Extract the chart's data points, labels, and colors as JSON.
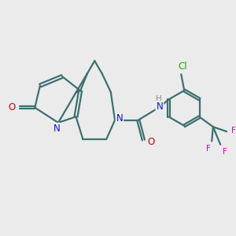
{
  "bg_color": "#ebebeb",
  "bond_color": "#3d7070",
  "bond_width": 1.6,
  "dbo": 0.06,
  "atom_colors": {
    "N": "#1010dd",
    "O": "#cc0000",
    "Cl": "#22aa00",
    "F": "#cc00cc",
    "H": "#888888"
  },
  "font_size": 8.5,
  "figsize": [
    3.0,
    3.0
  ],
  "dpi": 100,
  "xlim": [
    -3.5,
    5.2
  ],
  "ylim": [
    -2.8,
    2.6
  ]
}
